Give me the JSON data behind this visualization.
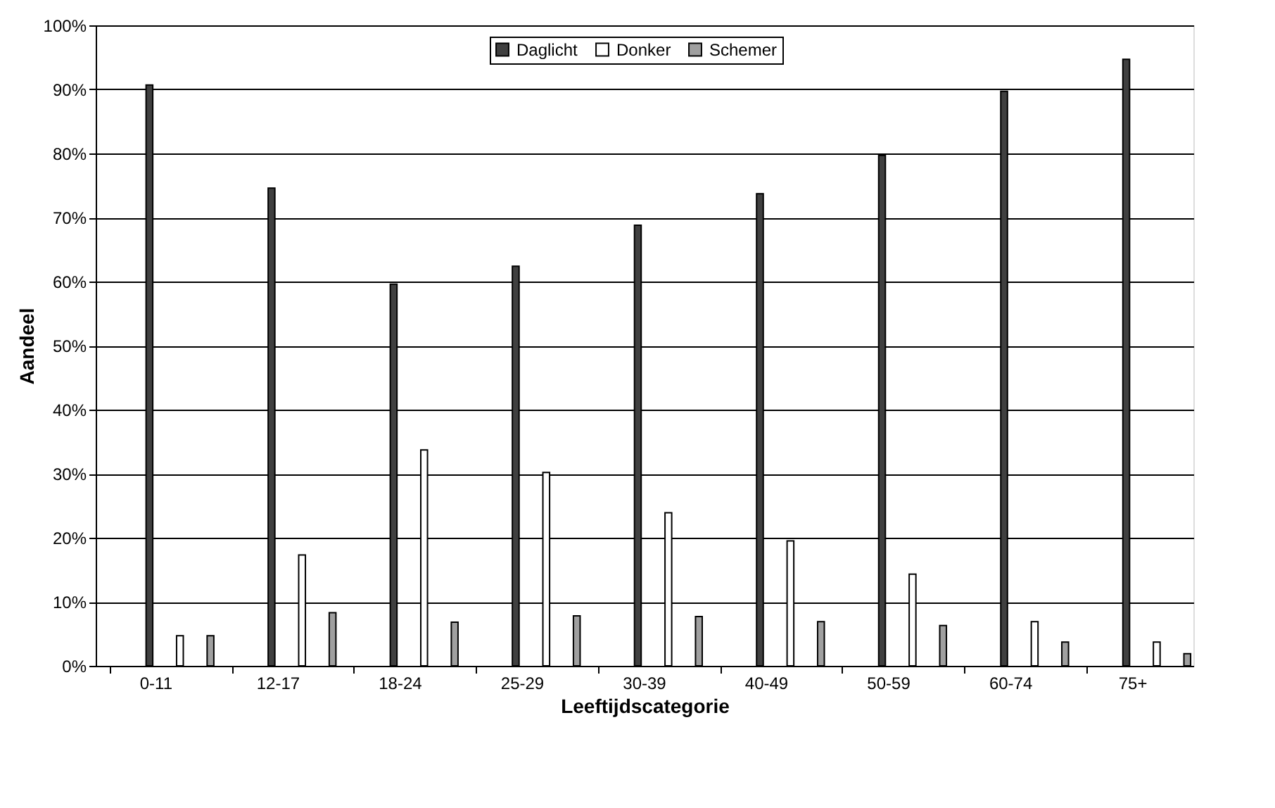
{
  "chart_data": {
    "type": "bar",
    "xlabel": "Leeftijdscategorie",
    "ylabel": "Aandeel",
    "categories": [
      "0-11",
      "12-17",
      "18-24",
      "25-29",
      "30-39",
      "40-49",
      "50-59",
      "60-74",
      "75+"
    ],
    "series": [
      {
        "name": "Daglicht",
        "color": "#404040",
        "values": [
          90.7,
          74.6,
          59.6,
          62.4,
          68.8,
          73.7,
          79.7,
          89.7,
          94.7
        ]
      },
      {
        "name": "Donker",
        "color": "#ffffff",
        "values": [
          4.7,
          17.3,
          33.7,
          30.2,
          23.9,
          19.5,
          14.3,
          6.9,
          3.7
        ]
      },
      {
        "name": "Schemer",
        "color": "#a0a0a0",
        "values": [
          4.7,
          8.3,
          6.8,
          7.8,
          7.7,
          6.9,
          6.3,
          3.7,
          1.9
        ]
      }
    ],
    "ylim": [
      0,
      100
    ],
    "yticks": [
      {
        "value": 0,
        "label": "0%"
      },
      {
        "value": 10,
        "label": "10%"
      },
      {
        "value": 20,
        "label": "20%"
      },
      {
        "value": 30,
        "label": "30%"
      },
      {
        "value": 40,
        "label": "40%"
      },
      {
        "value": 50,
        "label": "50%"
      },
      {
        "value": 60,
        "label": "60%"
      },
      {
        "value": 70,
        "label": "70%"
      },
      {
        "value": 80,
        "label": "80%"
      },
      {
        "value": 90,
        "label": "90%"
      },
      {
        "value": 100,
        "label": "100%"
      }
    ],
    "grid": "y",
    "legend": "top"
  }
}
